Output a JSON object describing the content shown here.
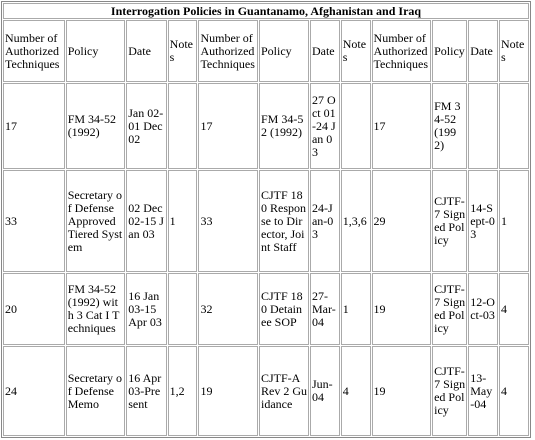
{
  "table": {
    "title": "Interrogation Policies  in Guantanamo, Afghanistan and Iraq",
    "header": [
      "Number of Authorized Techniques",
      "Policy",
      "Date",
      "Notes",
      "Number of Authorized Techniques",
      "Policy",
      "Date",
      "Notes",
      "Number of Authorized Techniques",
      "Policy",
      "Date",
      "Notes"
    ],
    "rows": [
      [
        17,
        "FM 34-52 (1992)",
        "Jan 02-01 Dec 02",
        null,
        17,
        "FM 34-52 (1992)",
        "27 Oct 01-24 Jan 03",
        null,
        17,
        "FM 34-52 (1992)",
        null,
        null
      ],
      [
        33,
        "Secretary of Defense Approved Tiered System",
        "02 Dec 02-15 Jan 03",
        "1",
        33,
        "CJTF 180 Response to Director, Joint Staff",
        "24-Jan-03",
        "1,3,6",
        29,
        "CJTF-7 Signed Policy",
        "14-Sept-03",
        "1"
      ],
      [
        20,
        "FM 34-52 (1992) with 3 Cat I Techniques",
        "16 Jan 03-15 Apr 03",
        null,
        32,
        "CJTF 180 Detainee SOP",
        "27-Mar-04",
        "1",
        19,
        "CJTF-7 Signed Policy",
        "12-Oct-03",
        "4"
      ],
      [
        24,
        "Secretary of Defense Memo",
        "16 Apr 03-Present",
        "1,2",
        19,
        "CJTF-A Rev 2 Guidance",
        "Jun-04",
        "4",
        19,
        "CJTF-7 Signed Policy",
        "13-May-04",
        "4"
      ]
    ]
  }
}
